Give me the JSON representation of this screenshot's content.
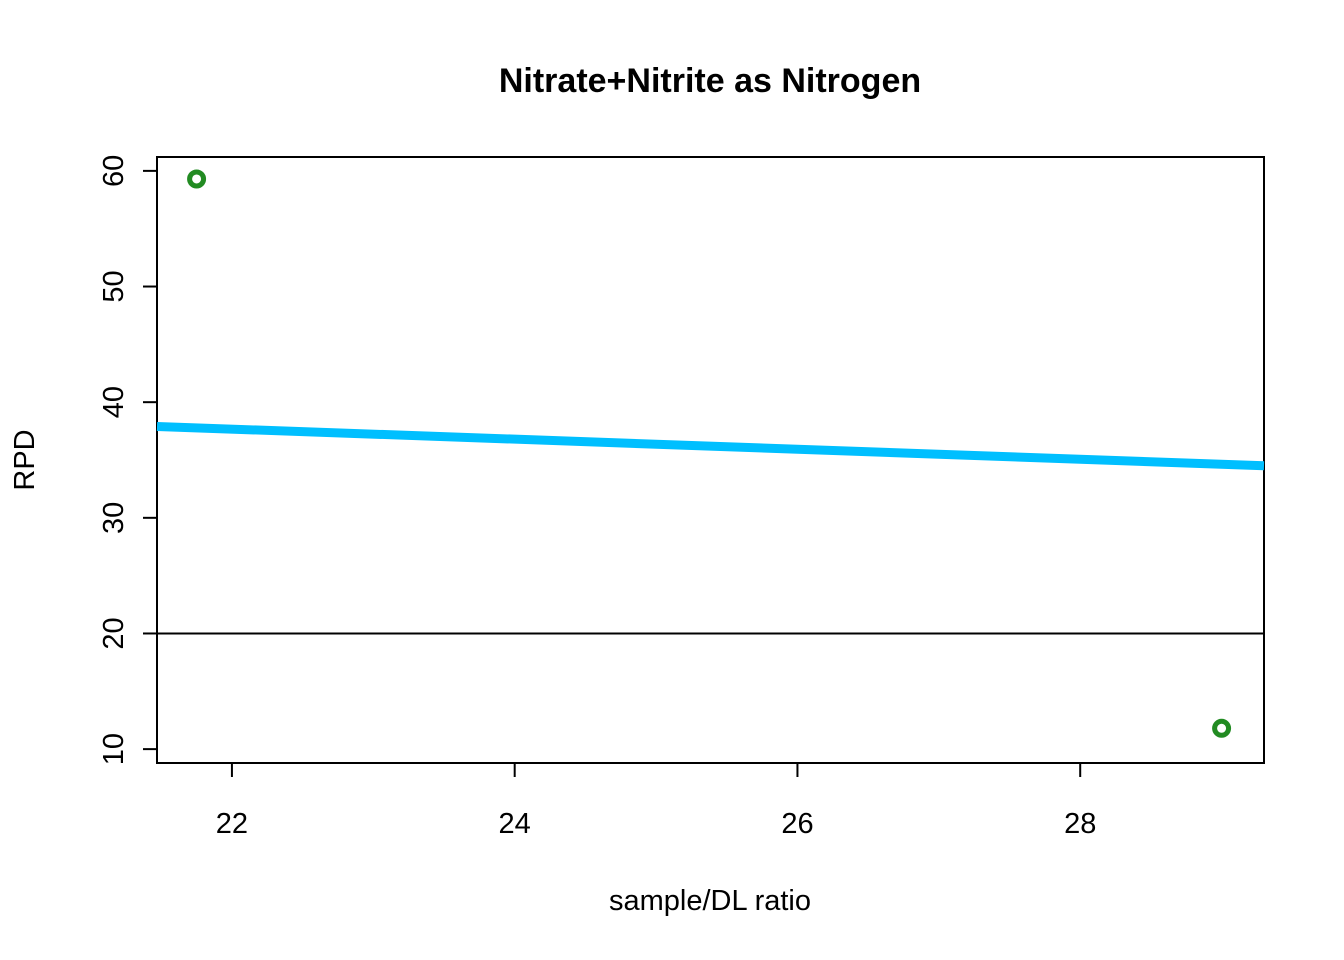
{
  "chart_data": {
    "type": "scatter",
    "title": "Nitrate+Nitrite as Nitrogen",
    "xlabel": "sample/DL ratio",
    "ylabel": "RPD",
    "xlim": [
      21.47,
      29.3
    ],
    "ylim": [
      8.8,
      61.2
    ],
    "x_ticks": [
      22,
      24,
      26,
      28
    ],
    "y_ticks": [
      10,
      20,
      30,
      40,
      50,
      60
    ],
    "grid": false,
    "legend": "none",
    "series": [
      {
        "type": "scatter",
        "points": [
          {
            "x": 21.75,
            "y": 59.3
          },
          {
            "x": 29.0,
            "y": 11.8
          }
        ],
        "color": "#228B22",
        "marker": "circle-open"
      }
    ],
    "lines": [
      {
        "kind": "trend",
        "x": [
          21.47,
          29.3
        ],
        "y": [
          37.9,
          34.5
        ],
        "color": "#00BFFF"
      },
      {
        "kind": "reference",
        "h": 20,
        "color": "#000000"
      }
    ]
  }
}
